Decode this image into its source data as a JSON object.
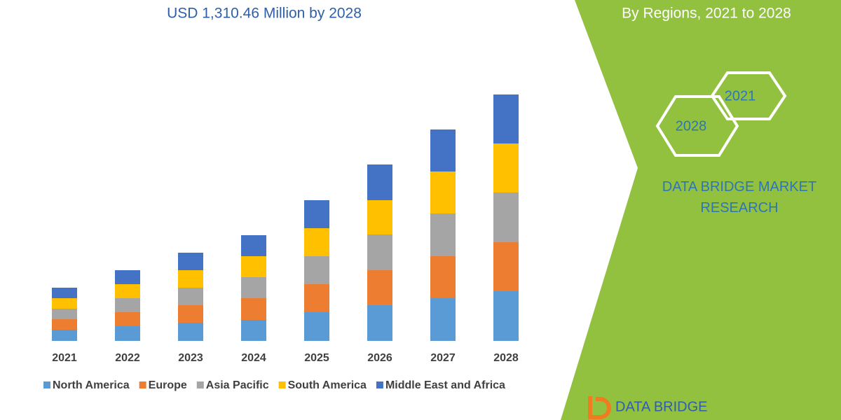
{
  "chart_data": {
    "type": "stacked-bar",
    "title": "USD 1,310.46 Million by 2028",
    "categories": [
      "2021",
      "2022",
      "2023",
      "2024",
      "2025",
      "2026",
      "2027",
      "2028"
    ],
    "series": [
      {
        "name": "North America",
        "color": "#5b9bd5",
        "values": [
          16,
          21,
          26,
          30,
          41,
          51,
          61,
          71
        ]
      },
      {
        "name": "Europe",
        "color": "#ed7d31",
        "values": [
          15,
          20,
          25,
          31,
          40,
          50,
          60,
          70
        ]
      },
      {
        "name": "Asia Pacific",
        "color": "#a5a5a5",
        "values": [
          15,
          20,
          25,
          30,
          40,
          51,
          61,
          71
        ]
      },
      {
        "name": "South America",
        "color": "#ffc000",
        "values": [
          15,
          20,
          25,
          30,
          40,
          49,
          60,
          70
        ]
      },
      {
        "name": "Middle East and Africa",
        "color": "#4472c4",
        "values": [
          15,
          20,
          25,
          30,
          40,
          51,
          60,
          70
        ]
      }
    ],
    "ylim": [
      0,
      360
    ],
    "legend": "bottom"
  },
  "side_panel": {
    "subtitle": "By Regions, 2021 to 2028",
    "hex_top": "2021",
    "hex_bottom": "2028",
    "brand": "DATA BRIDGE MARKET RESEARCH",
    "logo": "DATA BRIDGE"
  }
}
